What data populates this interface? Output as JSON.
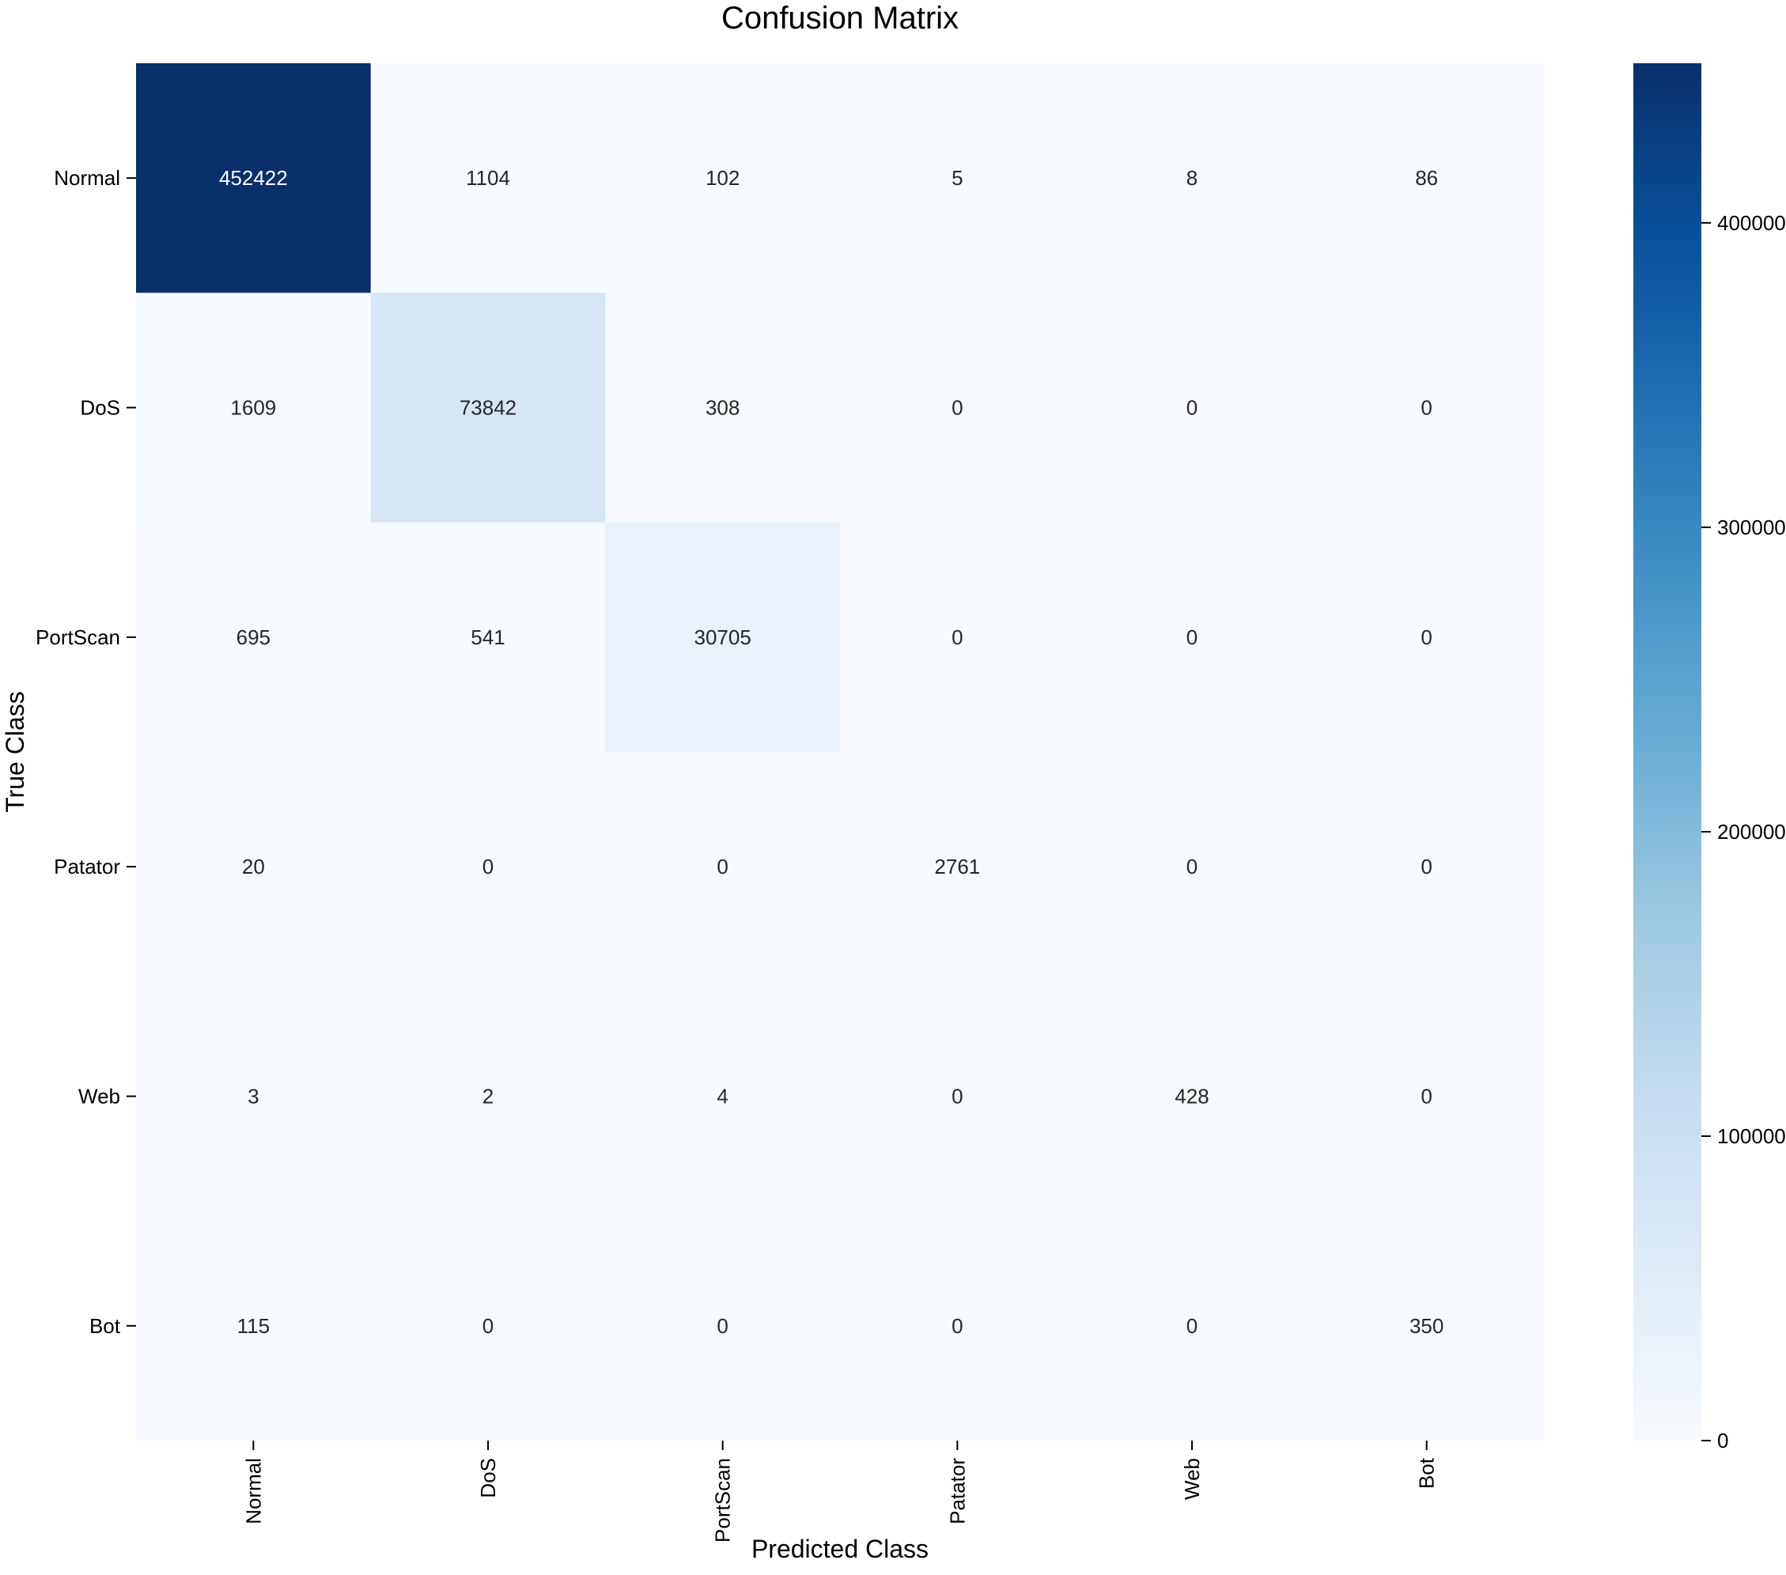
{
  "chart_data": {
    "type": "heatmap",
    "title": "Confusion Matrix",
    "xlabel": "Predicted Class",
    "ylabel": "True Class",
    "x_categories": [
      "Normal",
      "DoS",
      "PortScan",
      "Patator",
      "Web",
      "Bot"
    ],
    "y_categories": [
      "Normal",
      "DoS",
      "PortScan",
      "Patator",
      "Web",
      "Bot"
    ],
    "values": [
      [
        452422,
        1104,
        102,
        5,
        8,
        86
      ],
      [
        1609,
        73842,
        308,
        0,
        0,
        0
      ],
      [
        695,
        541,
        30705,
        0,
        0,
        0
      ],
      [
        20,
        0,
        0,
        2761,
        0,
        0
      ],
      [
        3,
        2,
        4,
        0,
        428,
        0
      ],
      [
        115,
        0,
        0,
        0,
        0,
        350
      ]
    ],
    "colormap": "Blues",
    "colors": [
      "#f7fbff",
      "#deebf7",
      "#c6dbef",
      "#9ecae1",
      "#6baed6",
      "#4292c6",
      "#2171b5",
      "#08519c",
      "#08306b"
    ],
    "vmin": 0,
    "vmax": 452422,
    "colorbar_ticks": [
      0,
      100000,
      200000,
      300000,
      400000
    ],
    "colorbar_tick_labels": [
      "0",
      "100000",
      "200000",
      "300000",
      "400000"
    ]
  }
}
